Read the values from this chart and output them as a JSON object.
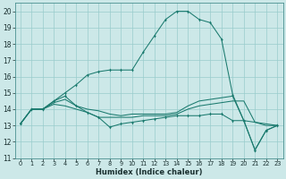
{
  "xlabel": "Humidex (Indice chaleur)",
  "x_values": [
    0,
    1,
    2,
    3,
    4,
    5,
    6,
    7,
    8,
    9,
    10,
    11,
    12,
    13,
    14,
    15,
    16,
    17,
    18,
    19,
    20,
    21,
    22,
    23
  ],
  "line_nomark1": [
    13.1,
    14.0,
    14.0,
    14.3,
    14.2,
    14.0,
    13.8,
    13.5,
    13.5,
    13.5,
    13.5,
    13.6,
    13.6,
    13.6,
    13.7,
    14.0,
    14.2,
    14.3,
    14.4,
    14.5,
    14.5,
    13.2,
    13.0,
    13.0
  ],
  "line_nomark2": [
    13.1,
    14.0,
    14.0,
    14.4,
    14.6,
    14.2,
    14.0,
    13.9,
    13.7,
    13.6,
    13.7,
    13.7,
    13.7,
    13.7,
    13.8,
    14.2,
    14.5,
    14.6,
    14.7,
    14.8,
    13.3,
    13.2,
    13.1,
    13.0
  ],
  "line_mark1": [
    13.1,
    14.0,
    14.0,
    14.5,
    14.8,
    14.2,
    13.8,
    13.5,
    12.9,
    13.1,
    13.2,
    13.3,
    13.4,
    13.5,
    13.6,
    13.6,
    13.6,
    13.7,
    13.7,
    13.3,
    13.3,
    11.5,
    12.7,
    13.0
  ],
  "line_main": [
    13.1,
    14.0,
    14.0,
    14.5,
    15.0,
    15.5,
    16.1,
    16.3,
    16.4,
    16.4,
    16.4,
    17.5,
    18.5,
    19.5,
    20.0,
    20.0,
    19.5,
    19.3,
    18.3,
    14.9,
    13.3,
    11.5,
    12.7,
    13.0
  ],
  "ylim": [
    11,
    20.5
  ],
  "yticks": [
    11,
    12,
    13,
    14,
    15,
    16,
    17,
    18,
    19,
    20
  ],
  "xticks": [
    0,
    1,
    2,
    3,
    4,
    5,
    6,
    7,
    8,
    9,
    10,
    11,
    12,
    13,
    14,
    15,
    16,
    17,
    18,
    19,
    20,
    21,
    22,
    23
  ],
  "line_color": "#1a7a6e",
  "bg_color": "#cce8e8",
  "grid_color": "#99cccc"
}
